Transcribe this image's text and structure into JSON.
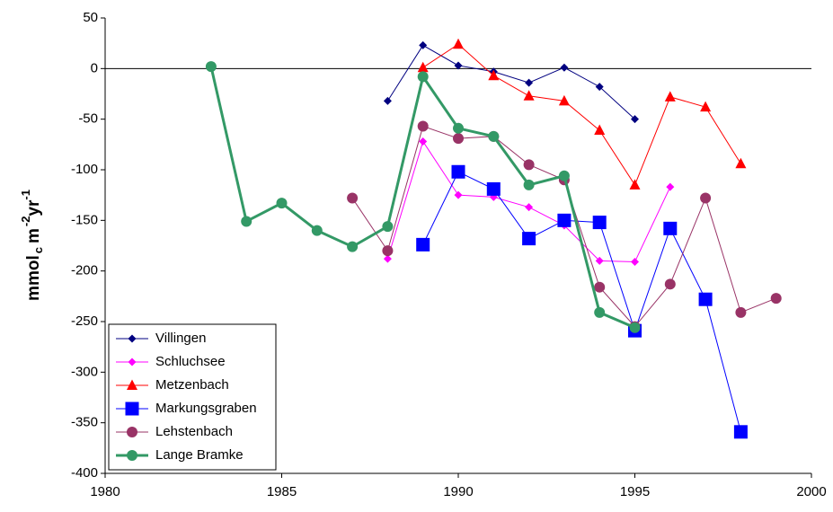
{
  "chart_data": {
    "type": "line",
    "y_label": [
      "mmol",
      "c",
      "m",
      "-2",
      "yr",
      "-1"
    ],
    "x": [
      1983,
      1984,
      1985,
      1986,
      1987,
      1988,
      1989,
      1990,
      1991,
      1992,
      1993,
      1994,
      1995,
      1996,
      1997,
      1998,
      1999
    ],
    "xlim": [
      1980,
      2000
    ],
    "xticks": [
      1980,
      1985,
      1990,
      1995,
      2000
    ],
    "ylim": [
      -400,
      50
    ],
    "yticks": [
      50,
      0,
      -50,
      -100,
      -150,
      -200,
      -250,
      -300,
      -350,
      -400
    ],
    "zero_line": true,
    "legend": "lower left",
    "series": [
      {
        "name": "Villingen",
        "color": "#000080",
        "marker": "diamond",
        "line_width": 1,
        "values": [
          null,
          null,
          null,
          null,
          null,
          -32,
          23,
          3,
          -3,
          -14,
          1,
          -18,
          -50,
          null,
          null,
          null,
          null
        ]
      },
      {
        "name": "Schluchsee",
        "color": "#ff00ff",
        "marker": "diamond",
        "line_width": 1,
        "values": [
          null,
          null,
          null,
          null,
          null,
          -188,
          -72,
          -125,
          -127,
          -137,
          -155,
          -190,
          -191,
          -117,
          null,
          null,
          null
        ]
      },
      {
        "name": "Metzenbach",
        "color": "#ff0000",
        "marker": "triangle",
        "line_width": 1,
        "values": [
          null,
          null,
          null,
          null,
          null,
          null,
          1,
          24,
          -7,
          -27,
          -32,
          -61,
          -115,
          -28,
          -38,
          -94,
          null
        ]
      },
      {
        "name": "Markungsgraben",
        "color": "#0000ff",
        "marker": "square",
        "line_width": 1,
        "values": [
          null,
          null,
          null,
          null,
          null,
          null,
          -174,
          -102,
          -119,
          -168,
          -150,
          -152,
          -259,
          -158,
          -228,
          -359,
          null
        ]
      },
      {
        "name": "Lehstenbach",
        "color": "#993366",
        "marker": "circle",
        "line_width": 1,
        "values": [
          null,
          null,
          null,
          null,
          -128,
          -180,
          -57,
          -69,
          -67,
          -95,
          -110,
          -216,
          -255,
          -213,
          -128,
          -241,
          -227
        ]
      },
      {
        "name": "Lange Bramke",
        "color": "#339966",
        "marker": "circle",
        "line_width": 3,
        "values": [
          2,
          -151,
          -133,
          -160,
          -176,
          -156,
          -8,
          -59,
          -67,
          -115,
          -106,
          -241,
          -256,
          null,
          null,
          null,
          null
        ]
      }
    ]
  }
}
